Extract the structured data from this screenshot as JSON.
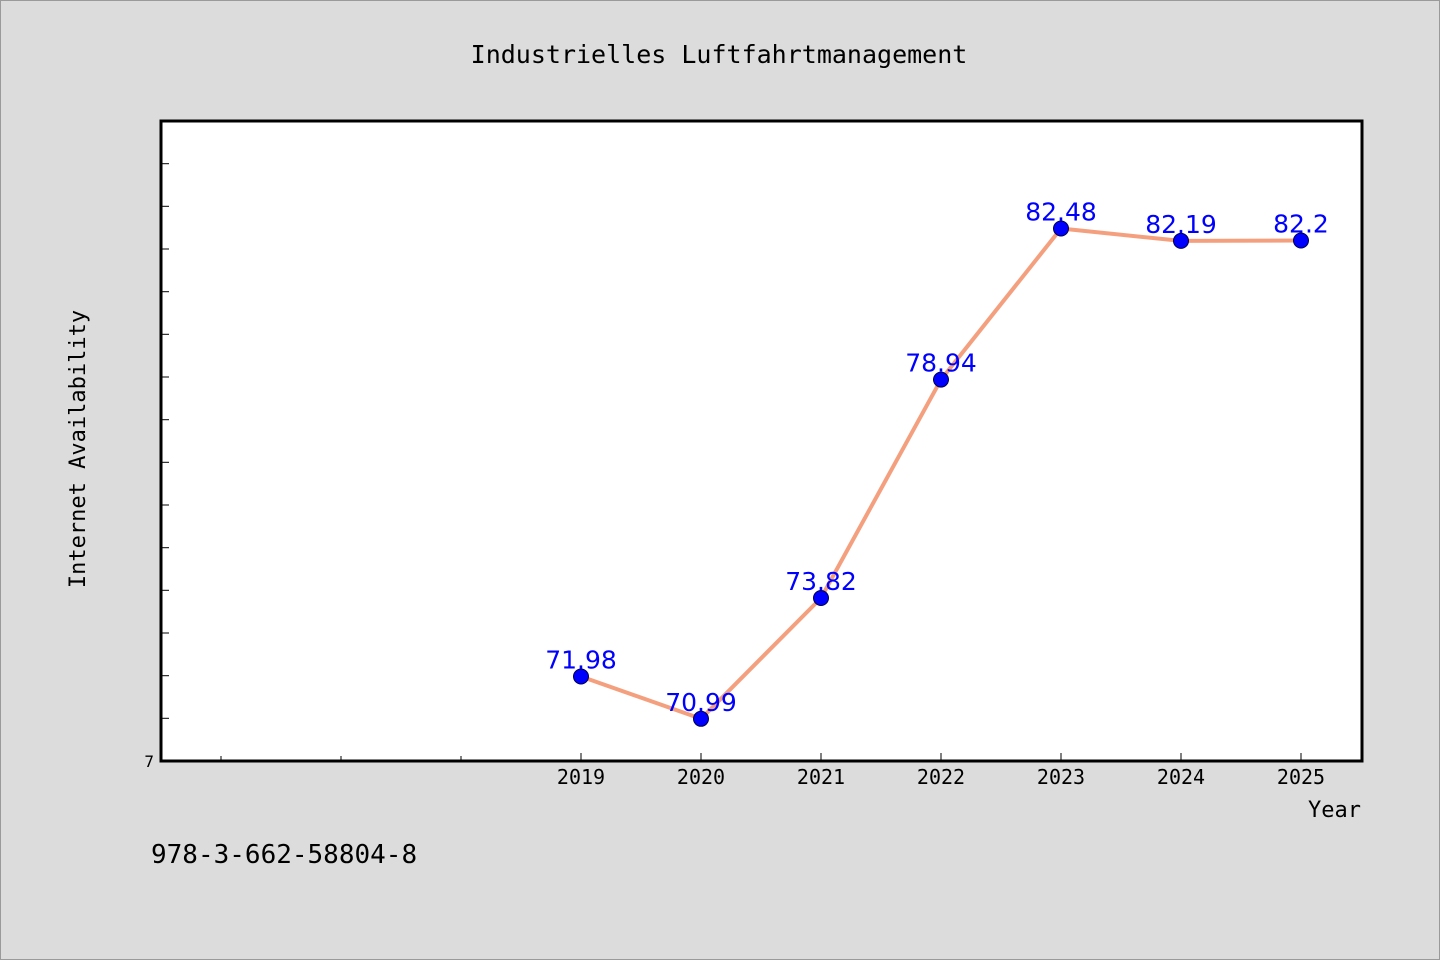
{
  "chart_data": {
    "type": "line",
    "title": "Industrielles Luftfahrtmanagement",
    "xlabel": "Year",
    "ylabel": "Internet Availability",
    "x": [
      "2019",
      "2020",
      "2021",
      "2022",
      "2023",
      "2024",
      "2025"
    ],
    "x_ticks": [
      "2019",
      "2020",
      "2021",
      "2022",
      "2023",
      "2024",
      "2025"
    ],
    "y_tick_labels": [
      "7"
    ],
    "series": [
      {
        "values": [
          71.98,
          70.99,
          73.82,
          78.94,
          82.48,
          82.19,
          82.2
        ],
        "labels": [
          "71.98",
          "70.99",
          "73.82",
          "78.94",
          "82.48",
          "82.19",
          "82.2"
        ],
        "line_color": "#f4a07f",
        "marker_color": "#0000ff"
      }
    ],
    "ylim": [
      70,
      85
    ],
    "grid": false,
    "legend": "none",
    "plot_background": "#ffffff",
    "figure_background": "#dcdcdc"
  },
  "annotation": {
    "isbn": "978-3-662-58804-8"
  }
}
